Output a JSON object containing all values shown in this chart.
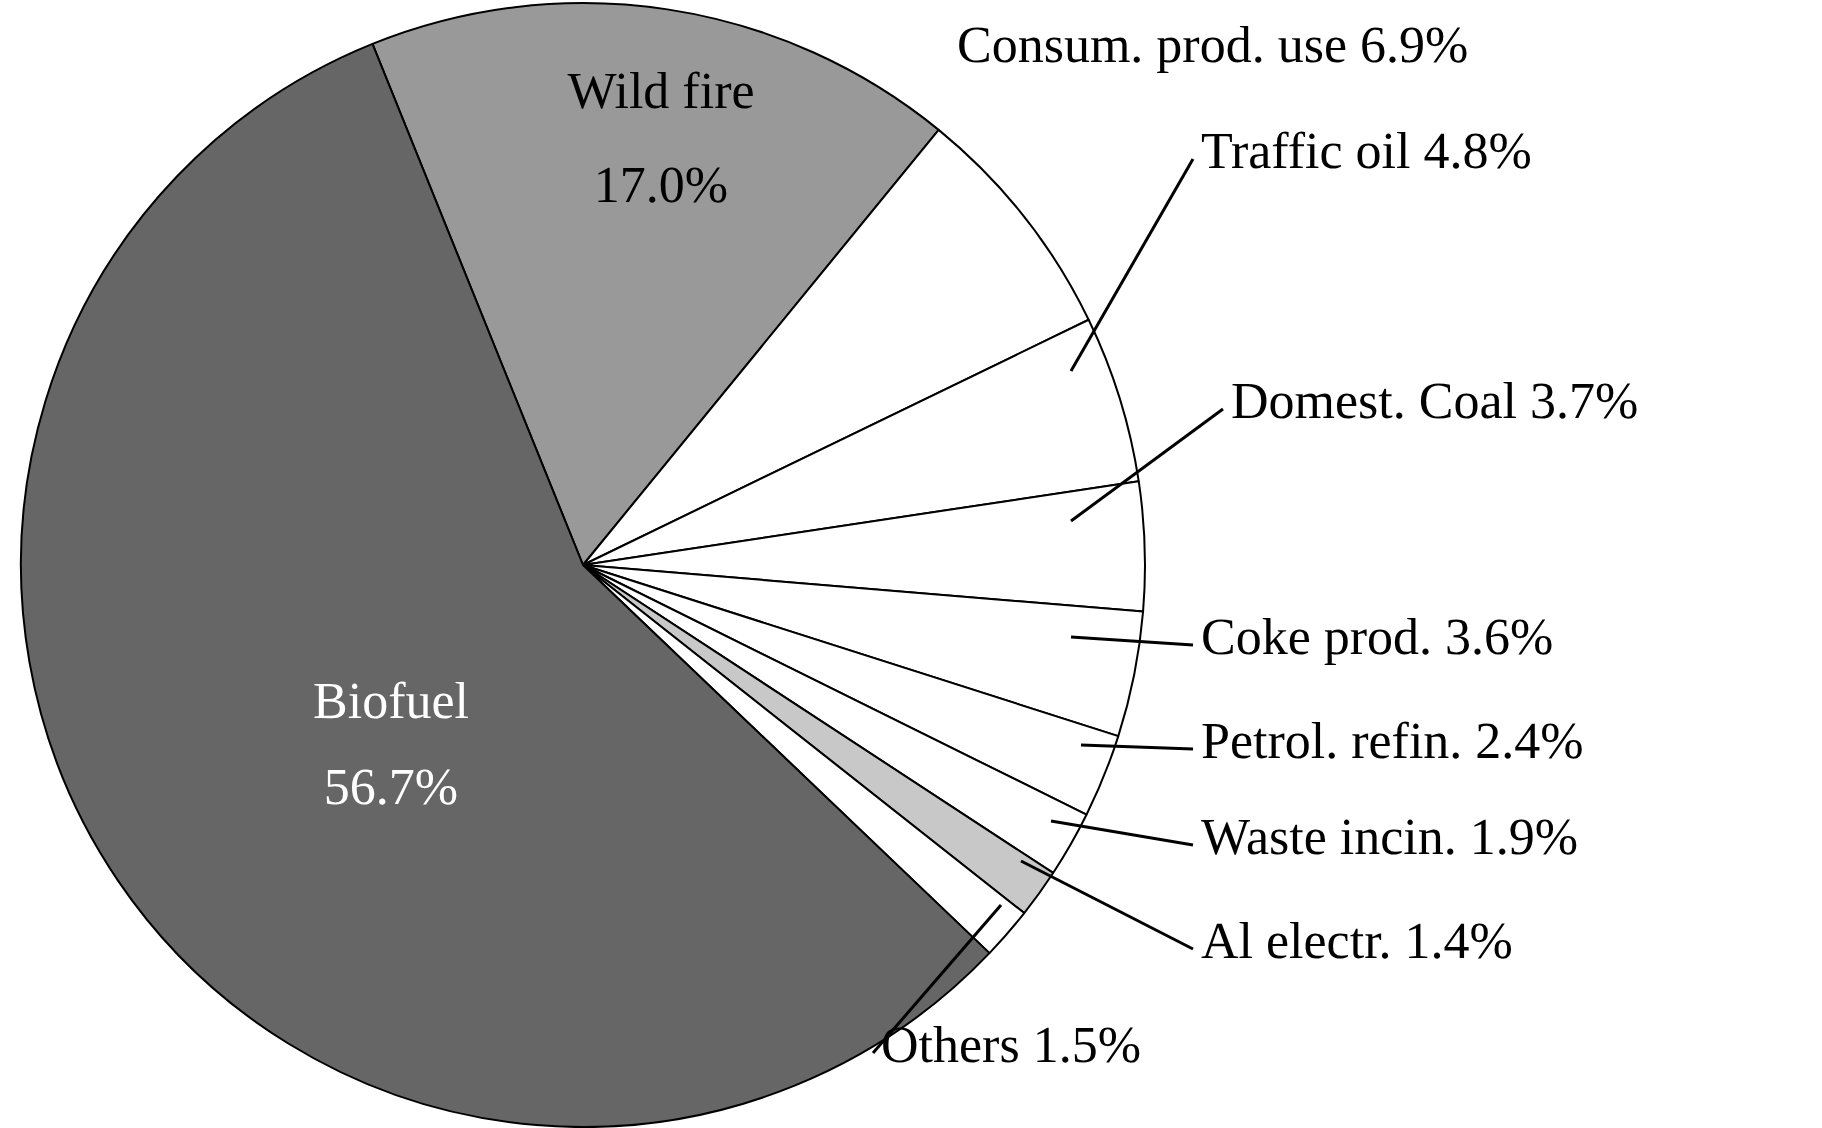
{
  "chart_data": {
    "type": "pie",
    "categories": [
      "Wild fire",
      "Consum. prod. use",
      "Traffic oil",
      "Domest. Coal",
      "Coke prod.",
      "Petrol. refin.",
      "Waste incin.",
      "Al electr.",
      "Others",
      "Biofuel"
    ],
    "values": [
      17.0,
      6.9,
      4.8,
      3.7,
      3.6,
      2.4,
      1.9,
      1.4,
      1.5,
      56.7
    ],
    "value_labels": [
      "17.0%",
      "6.9%",
      "4.8%",
      "3.7%",
      "3.6%",
      "2.4%",
      "1.9%",
      "1.4%",
      "1.5%",
      "56.7%"
    ],
    "colors": [
      "#999999",
      "#ffffff",
      "#ffffff",
      "#ffffff",
      "#ffffff",
      "#ffffff",
      "#ffffff",
      "#c8c8c8",
      "#ffffff",
      "#666666"
    ]
  }
}
